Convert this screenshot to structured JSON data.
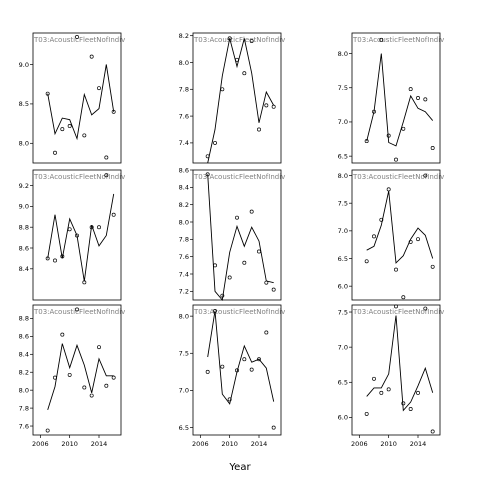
{
  "figure": {
    "xlabel": "Year"
  },
  "chart_data": [
    {
      "type": "line",
      "title": "T03:AcousticFleetNofIndiv",
      "xlim": [
        2005,
        2017
      ],
      "ylim": [
        7.75,
        9.4
      ],
      "yticks": [
        8.0,
        8.5,
        9.0
      ],
      "xticks": [],
      "xtick_labels": [],
      "x": [
        2007,
        2008,
        2009,
        2010,
        2011,
        2012,
        2013,
        2014,
        2015,
        2016
      ],
      "points": [
        8.63,
        7.88,
        8.18,
        8.22,
        9.35,
        8.1,
        9.1,
        8.7,
        7.82,
        8.4
      ],
      "fitted": [
        8.63,
        8.12,
        8.32,
        8.3,
        8.06,
        8.62,
        8.36,
        8.44,
        9.0,
        8.4
      ]
    },
    {
      "type": "line",
      "title": "T03:AcousticFleetNofIndiv",
      "xlim": [
        2005,
        2017
      ],
      "ylim": [
        7.25,
        8.22
      ],
      "yticks": [
        7.4,
        7.6,
        7.8,
        8.0,
        8.2
      ],
      "xticks": [],
      "xtick_labels": [],
      "x": [
        2007,
        2008,
        2009,
        2010,
        2011,
        2012,
        2013,
        2014,
        2015,
        2016
      ],
      "points": [
        7.3,
        7.4,
        7.8,
        8.18,
        8.02,
        7.92,
        8.16,
        7.5,
        7.68,
        7.67
      ],
      "fitted": [
        7.25,
        7.5,
        7.9,
        8.18,
        7.97,
        8.18,
        7.92,
        7.55,
        7.78,
        7.68
      ]
    },
    {
      "type": "line",
      "title": "T03:AcousticFleetNofIndiv",
      "xlim": [
        2005,
        2017
      ],
      "ylim": [
        6.4,
        8.3
      ],
      "yticks": [
        6.5,
        7.0,
        7.5,
        8.0
      ],
      "xticks": [],
      "xtick_labels": [],
      "x": [
        2007,
        2008,
        2009,
        2010,
        2011,
        2012,
        2013,
        2014,
        2015,
        2016
      ],
      "points": [
        6.72,
        7.15,
        8.2,
        6.8,
        6.45,
        6.9,
        7.48,
        7.35,
        7.33,
        6.62
      ],
      "fitted": [
        6.72,
        7.15,
        8.0,
        6.7,
        6.65,
        7.0,
        7.38,
        7.2,
        7.15,
        7.02
      ]
    },
    {
      "type": "line",
      "title": "T03:AcousticFleetNofIndiv",
      "xlim": [
        2005,
        2017
      ],
      "ylim": [
        8.1,
        9.35
      ],
      "yticks": [
        8.4,
        8.6,
        8.8,
        9.0,
        9.2
      ],
      "xticks": [],
      "xtick_labels": [],
      "x": [
        2007,
        2008,
        2009,
        2010,
        2011,
        2012,
        2013,
        2014,
        2015,
        2016
      ],
      "points": [
        8.5,
        8.48,
        8.52,
        8.78,
        8.72,
        8.27,
        8.8,
        8.8,
        9.3,
        8.92
      ],
      "fitted": [
        8.5,
        8.92,
        8.5,
        8.88,
        8.72,
        8.28,
        8.82,
        8.62,
        8.72,
        9.12
      ]
    },
    {
      "type": "line",
      "title": "T03:AcousticFleetNofIndiv",
      "xlim": [
        2005,
        2017
      ],
      "ylim": [
        7.1,
        8.6
      ],
      "yticks": [
        7.2,
        7.4,
        7.6,
        7.8,
        8.0,
        8.2,
        8.4,
        8.6
      ],
      "xticks": [],
      "xtick_labels": [],
      "x": [
        2007,
        2008,
        2009,
        2010,
        2011,
        2012,
        2013,
        2014,
        2015,
        2016
      ],
      "points": [
        8.55,
        7.5,
        7.15,
        7.36,
        8.05,
        7.53,
        8.12,
        7.66,
        7.3,
        7.22
      ],
      "fitted": [
        8.55,
        7.2,
        7.1,
        7.65,
        7.95,
        7.72,
        7.94,
        7.78,
        7.32,
        7.3
      ]
    },
    {
      "type": "line",
      "title": "T03:AcousticFleetNofIndiv",
      "xlim": [
        2005,
        2017
      ],
      "ylim": [
        5.75,
        8.1
      ],
      "yticks": [
        6.0,
        6.5,
        7.0,
        7.5,
        8.0
      ],
      "xticks": [],
      "xtick_labels": [],
      "x": [
        2007,
        2008,
        2009,
        2010,
        2011,
        2012,
        2013,
        2014,
        2015,
        2016
      ],
      "points": [
        6.45,
        6.9,
        7.2,
        7.75,
        6.3,
        5.8,
        6.8,
        6.85,
        8.0,
        6.35
      ],
      "fitted": [
        6.65,
        6.72,
        7.1,
        7.72,
        6.42,
        6.55,
        6.85,
        7.05,
        6.92,
        6.5
      ]
    },
    {
      "type": "line",
      "title": "T03:AcousticFleetNofIndiv",
      "xlim": [
        2005,
        2017
      ],
      "ylim": [
        7.5,
        8.95
      ],
      "yticks": [
        7.6,
        7.8,
        8.0,
        8.2,
        8.4,
        8.6,
        8.8
      ],
      "xticks": [
        2006,
        2010,
        2014
      ],
      "xtick_labels": [
        "2006",
        "2010",
        "2014"
      ],
      "x": [
        2007,
        2008,
        2009,
        2010,
        2011,
        2012,
        2013,
        2014,
        2015,
        2016
      ],
      "points": [
        7.55,
        8.14,
        8.62,
        8.17,
        8.9,
        8.03,
        7.94,
        8.48,
        8.05,
        8.14
      ],
      "fitted": [
        7.78,
        8.04,
        8.52,
        8.25,
        8.5,
        8.28,
        7.97,
        8.35,
        8.16,
        8.16
      ]
    },
    {
      "type": "line",
      "title": "T03:AcousticFleetNofIndiv",
      "xlim": [
        2005,
        2017
      ],
      "ylim": [
        6.4,
        8.15
      ],
      "yticks": [
        6.5,
        7.0,
        7.5,
        8.0
      ],
      "xticks": [
        2006,
        2010,
        2014
      ],
      "xtick_labels": [
        "2006",
        "2010",
        "2014"
      ],
      "x": [
        2007,
        2008,
        2009,
        2010,
        2011,
        2012,
        2013,
        2014,
        2015,
        2016
      ],
      "points": [
        7.25,
        8.07,
        7.32,
        6.88,
        7.27,
        7.42,
        7.28,
        7.42,
        7.78,
        6.5
      ],
      "fitted": [
        7.45,
        8.07,
        6.95,
        6.82,
        7.25,
        7.6,
        7.38,
        7.42,
        7.3,
        6.85
      ]
    },
    {
      "type": "line",
      "title": "T03:AcousticFleetNofIndiv",
      "xlim": [
        2005,
        2017
      ],
      "ylim": [
        5.75,
        7.6
      ],
      "yticks": [
        6.0,
        6.5,
        7.0,
        7.5
      ],
      "xticks": [
        2006,
        2010,
        2014
      ],
      "xtick_labels": [
        "2006",
        "2010",
        "2014"
      ],
      "x": [
        2007,
        2008,
        2009,
        2010,
        2011,
        2012,
        2013,
        2014,
        2015,
        2016
      ],
      "points": [
        6.05,
        6.55,
        6.35,
        6.4,
        7.58,
        6.2,
        6.12,
        6.35,
        7.55,
        5.8
      ],
      "fitted": [
        6.3,
        6.42,
        6.42,
        6.62,
        7.45,
        6.1,
        6.22,
        6.45,
        6.7,
        6.35
      ]
    }
  ]
}
